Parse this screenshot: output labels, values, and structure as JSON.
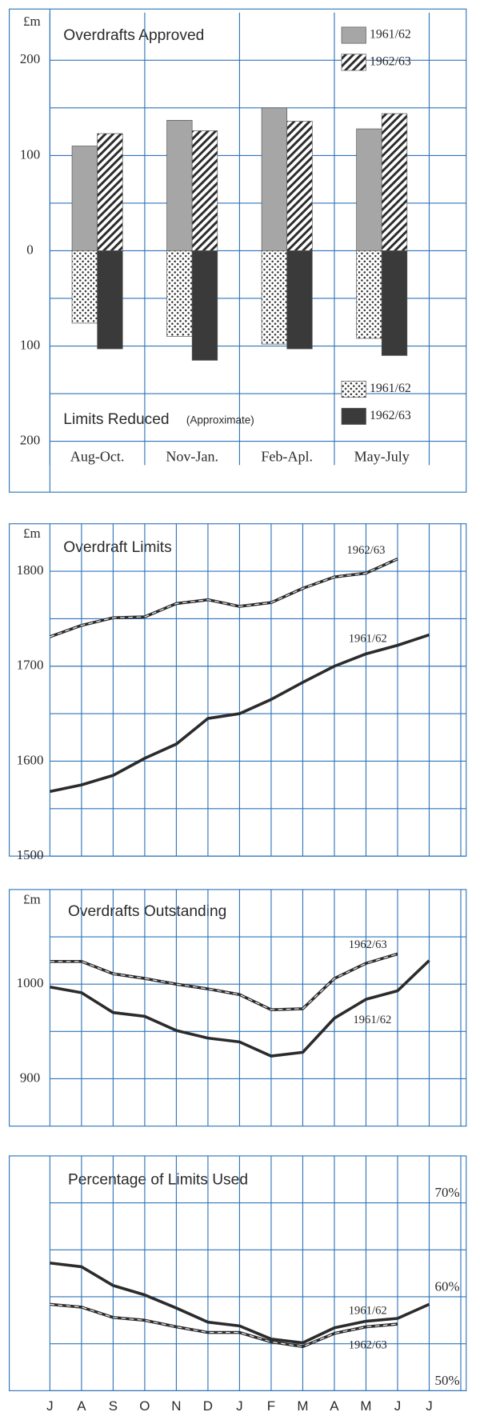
{
  "chart_data": [
    {
      "type": "bar",
      "title": "Overdrafts Approved",
      "subtitle": "Limits Reduced",
      "annotation": "(Approximate)",
      "y_label": "£m",
      "categories": [
        "Aug-Oct.",
        "Nov-Jan.",
        "Feb-Apl.",
        "May-July"
      ],
      "series": [
        {
          "name": "1961/62",
          "color": "#a6a6a6",
          "pattern": "solid",
          "legend": "top-right",
          "values": [
            110,
            137,
            150,
            128
          ]
        },
        {
          "name": "1962/63",
          "color": "#2b2b2b",
          "pattern": "hatch",
          "legend": "top-right",
          "values": [
            123,
            126,
            136,
            144
          ]
        },
        {
          "name": "1961/62",
          "color": "#2b2b2b",
          "pattern": "dots",
          "legend": "bottom-right",
          "values": [
            -76,
            -90,
            -98,
            -92
          ]
        },
        {
          "name": "1962/63",
          "color": "#3a3a3a",
          "pattern": "solid",
          "legend": "bottom-right",
          "values": [
            -103,
            -115,
            -103,
            -110
          ]
        }
      ],
      "ylim": [
        -225,
        250
      ],
      "yticks": [
        {
          "value": -200,
          "label": "200"
        },
        {
          "value": -100,
          "label": "100"
        },
        0,
        100,
        200
      ],
      "grid": true,
      "y_axis": "left"
    },
    {
      "type": "line",
      "title": "Overdraft Limits",
      "y_label": "£m",
      "categories": [
        null,
        null,
        null,
        null,
        null,
        null,
        null,
        null,
        null,
        null,
        null,
        null,
        null
      ],
      "series": [
        {
          "name": "1961/62",
          "color": "#2b2b2b",
          "line_style": "solid",
          "values": [
            1568,
            1575,
            1585,
            1603,
            1618,
            1645,
            1650,
            1665,
            1683,
            1700,
            1713,
            1722,
            1733
          ]
        },
        {
          "name": "1962/63",
          "color": "#2b2b2b",
          "line_style": "dashed",
          "values": [
            1731,
            1743,
            1751,
            1752,
            1766,
            1770,
            1763,
            1767,
            1782,
            1794,
            1798,
            1813,
            null
          ]
        }
      ],
      "ylim": [
        1500,
        1850
      ],
      "yticks": [
        1500,
        1600,
        1700,
        1800
      ],
      "grid": true,
      "y_axis": "left"
    },
    {
      "type": "line",
      "title": "Overdrafts Outstanding",
      "y_label": "£m",
      "categories": [
        null,
        null,
        null,
        null,
        null,
        null,
        null,
        null,
        null,
        null,
        null,
        null,
        null
      ],
      "series": [
        {
          "name": "1961/62",
          "color": "#2b2b2b",
          "line_style": "solid",
          "values": [
            997,
            991,
            970,
            966,
            951,
            943,
            939,
            924,
            928,
            964,
            984,
            993,
            1025
          ]
        },
        {
          "name": "1962/63",
          "color": "#2b2b2b",
          "line_style": "dashed",
          "values": [
            1024,
            1024,
            1011,
            1006,
            1000,
            995,
            989,
            973,
            974,
            1006,
            1022,
            1032,
            null
          ]
        }
      ],
      "ylim": [
        850,
        1100
      ],
      "yticks": [
        900,
        1000
      ],
      "grid": true,
      "y_axis": "left"
    },
    {
      "type": "line",
      "title": "Percentage of Limits Used",
      "categories": [
        "J",
        "A",
        "S",
        "O",
        "N",
        "D",
        "J",
        "F",
        "M",
        "A",
        "M",
        "J",
        "J"
      ],
      "series": [
        {
          "name": "1961/62",
          "color": "#2b2b2b",
          "line_style": "solid",
          "values": [
            63.6,
            63.2,
            61.2,
            60.2,
            58.8,
            57.3,
            56.9,
            55.5,
            55.1,
            56.7,
            57.4,
            57.7,
            59.2
          ]
        },
        {
          "name": "1962/63",
          "color": "#2b2b2b",
          "line_style": "dashed",
          "values": [
            59.2,
            58.9,
            57.8,
            57.5,
            56.8,
            56.2,
            56.2,
            55.2,
            54.7,
            56.1,
            56.8,
            57.1,
            null
          ]
        }
      ],
      "ylim": [
        50,
        75
      ],
      "yticks": [
        {
          "value": 50,
          "label": "50%"
        },
        {
          "value": 60,
          "label": "60%"
        },
        {
          "value": 70,
          "label": "70%"
        }
      ],
      "grid": true,
      "y_axis": "right"
    }
  ]
}
